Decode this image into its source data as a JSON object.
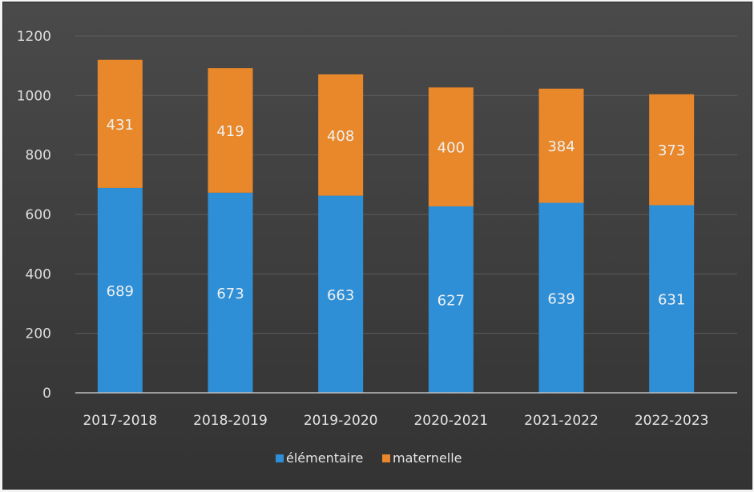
{
  "chart_data": {
    "type": "bar",
    "stacked": true,
    "categories": [
      "2017-2018",
      "2018-2019",
      "2019-2020",
      "2020-2021",
      "2021-2022",
      "2022-2023"
    ],
    "series": [
      {
        "name": "élémentaire",
        "values": [
          689,
          673,
          663,
          627,
          639,
          631
        ],
        "color": "#2e8fd6"
      },
      {
        "name": "maternelle",
        "values": [
          431,
          419,
          408,
          400,
          384,
          373
        ],
        "color": "#e8882a"
      }
    ],
    "title": "",
    "xlabel": "",
    "ylabel": "",
    "ylim": [
      0,
      1200
    ],
    "yticks": [
      0,
      200,
      400,
      600,
      800,
      1000,
      1200
    ],
    "grid": true,
    "legend": "bottom",
    "background": "#404040"
  }
}
